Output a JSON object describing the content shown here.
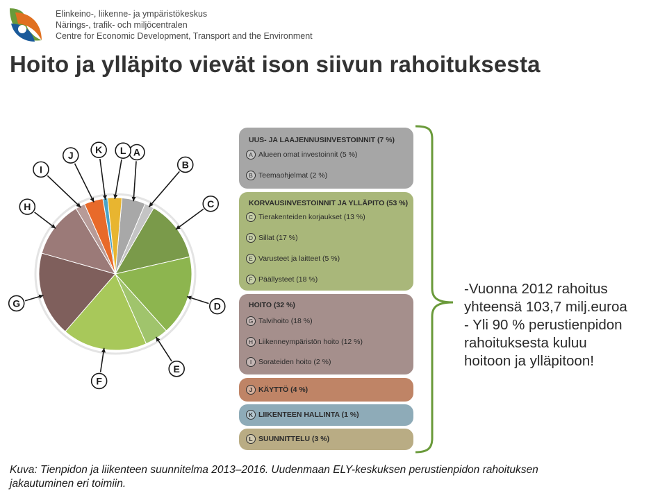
{
  "header": {
    "org_lines": [
      "Elinkeino-, liikenne- ja ympäristökeskus",
      "Närings-, trafik- och miljöcentralen",
      "Centre for Economic Development, Transport and the Environment"
    ],
    "title": "Hoito ja ylläpito vievät ison siivun rahoituksesta"
  },
  "legend_groups": [
    {
      "title": "UUS- JA LAAJENNUSINVESTOINNIT (7 %)",
      "color": "#a6a6a6",
      "items": [
        {
          "letter": "A",
          "text": "Alueen omat investoinnit (5 %)"
        },
        {
          "letter": "B",
          "text": "Teemaohjelmat (2 %)"
        }
      ]
    },
    {
      "title": "KORVAUSINVESTOINNIT JA YLLÄPITO (53 %)",
      "color": "#a9b77a",
      "items": [
        {
          "letter": "C",
          "text": "Tierakenteiden korjaukset (13 %)"
        },
        {
          "letter": "D",
          "text": "Sillat (17 %)"
        },
        {
          "letter": "E",
          "text": "Varusteet ja laitteet (5 %)"
        },
        {
          "letter": "F",
          "text": "Päällysteet (18 %)"
        }
      ]
    },
    {
      "title": "HOITO (32 %)",
      "color": "#a58f8c",
      "items": [
        {
          "letter": "G",
          "text": "Talvihoito (18 %)"
        },
        {
          "letter": "H",
          "text": "Liikenneympäristön hoito (12 %)"
        },
        {
          "letter": "I",
          "text": "Sorateiden hoito (2 %)"
        }
      ]
    }
  ],
  "legend_singles": [
    {
      "letter": "J",
      "text": "KÄYTTÖ (4 %)",
      "color": "#bf8466"
    },
    {
      "letter": "K",
      "text": "LIIKENTEEN HALLINTA (1 %)",
      "color": "#8eabb8"
    },
    {
      "letter": "L",
      "text": "SUUNNITTELU (3 %)",
      "color": "#b9ac84"
    }
  ],
  "bullets": [
    "-Vuonna 2012 rahoitus",
    "yhteensä 103,7 milj.euroa",
    "- Yli 90 % perustienpidon",
    "rahoituksesta kuluu",
    "hoitoon ja ylläpitoon!"
  ],
  "caption": [
    "Kuva: Tienpidon ja liikenteen suunnitelma 2013–2016. Uudenmaan ELY-keskuksen perustienpidon rahoituksen",
    "jakautuminen eri toimiin."
  ],
  "colors": {
    "bracket": "#6a9a3a",
    "title": "#333333"
  },
  "chart_data": {
    "type": "pie",
    "title": "",
    "slices": [
      {
        "label": "A",
        "name": "Alueen omat investoinnit",
        "value": 5,
        "color": "#a8a8a8"
      },
      {
        "label": "B",
        "name": "Teemaohjelmat",
        "value": 2,
        "color": "#c4c4c4"
      },
      {
        "label": "C",
        "name": "Tierakenteiden korjaukset",
        "value": 13,
        "color": "#7a9a4a"
      },
      {
        "label": "D",
        "name": "Sillat",
        "value": 17,
        "color": "#8db54f"
      },
      {
        "label": "E",
        "name": "Varusteet ja laitteet",
        "value": 5,
        "color": "#a0c46c"
      },
      {
        "label": "F",
        "name": "Päällysteet",
        "value": 18,
        "color": "#a8c85a"
      },
      {
        "label": "G",
        "name": "Talvihoito",
        "value": 18,
        "color": "#7f5f5c"
      },
      {
        "label": "H",
        "name": "Liikenneympäristön hoito",
        "value": 12,
        "color": "#9b7a78"
      },
      {
        "label": "I",
        "name": "Sorateiden hoito",
        "value": 2,
        "color": "#b79b98"
      },
      {
        "label": "J",
        "name": "Käyttö",
        "value": 4,
        "color": "#e86a2a"
      },
      {
        "label": "K",
        "name": "Liikenteen hallinta",
        "value": 1,
        "color": "#4aa3c8"
      },
      {
        "label": "L",
        "name": "Suunnittelu",
        "value": 3,
        "color": "#e8b530"
      }
    ]
  }
}
